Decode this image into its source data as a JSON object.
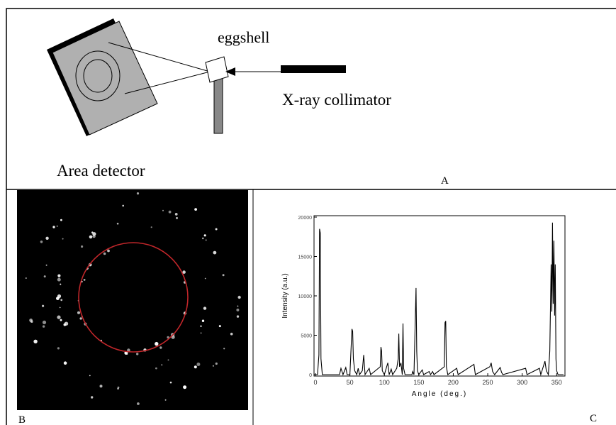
{
  "diagram": {
    "sample_label": "eggshell",
    "source_label": "X-ray collimator",
    "detector_label": "Area detector"
  },
  "panel_labels": [
    "A",
    "B",
    "C"
  ],
  "chart_data": {
    "type": "line",
    "xlabel": "Angle (deg.)",
    "ylabel": "Intensity (a.u.)",
    "xlim": [
      0,
      360
    ],
    "ylim": [
      0,
      20000
    ],
    "xticks": [
      0,
      50,
      100,
      150,
      200,
      250,
      300,
      350
    ],
    "yticks": [
      0,
      5000,
      10000,
      15000,
      20000
    ],
    "series": [
      {
        "color": "#000000",
        "x": [
          0,
          3,
          5,
          6,
          7,
          8,
          10,
          35,
          37,
          40,
          44,
          46,
          50,
          52,
          53,
          54,
          55,
          57,
          60,
          62,
          64,
          68,
          70,
          72,
          78,
          80,
          94,
          95,
          96,
          97,
          100,
          105,
          107,
          110,
          112,
          118,
          120,
          121,
          122,
          124,
          126,
          127,
          128,
          130,
          140,
          141,
          143,
          146,
          147,
          148,
          150,
          155,
          157,
          165,
          167,
          170,
          172,
          187,
          188,
          189,
          190,
          192,
          205,
          207,
          230,
          232,
          253,
          255,
          257,
          260,
          268,
          270,
          272,
          305,
          307,
          325,
          327,
          333,
          335,
          338,
          340,
          342,
          343,
          344,
          345,
          346,
          347,
          348,
          349,
          350,
          352,
          360
        ],
        "values": [
          0,
          0,
          2500,
          18500,
          18000,
          2000,
          0,
          0,
          800,
          0,
          900,
          0,
          0,
          4000,
          5800,
          5500,
          2000,
          500,
          0,
          800,
          0,
          500,
          2500,
          0,
          800,
          0,
          1000,
          3500,
          3000,
          500,
          0,
          1500,
          0,
          700,
          0,
          800,
          2000,
          5200,
          1000,
          1500,
          0,
          6500,
          800,
          0,
          0,
          400,
          0,
          11000,
          3000,
          500,
          0,
          600,
          0,
          400,
          0,
          400,
          0,
          1000,
          6600,
          6800,
          1000,
          0,
          800,
          0,
          1300,
          0,
          1000,
          1500,
          400,
          0,
          900,
          300,
          0,
          800,
          0,
          800,
          0,
          1700,
          500,
          0,
          3000,
          14000,
          8000,
          19300,
          9000,
          17000,
          7500,
          14000,
          2000,
          500,
          0,
          0
        ]
      }
    ]
  }
}
